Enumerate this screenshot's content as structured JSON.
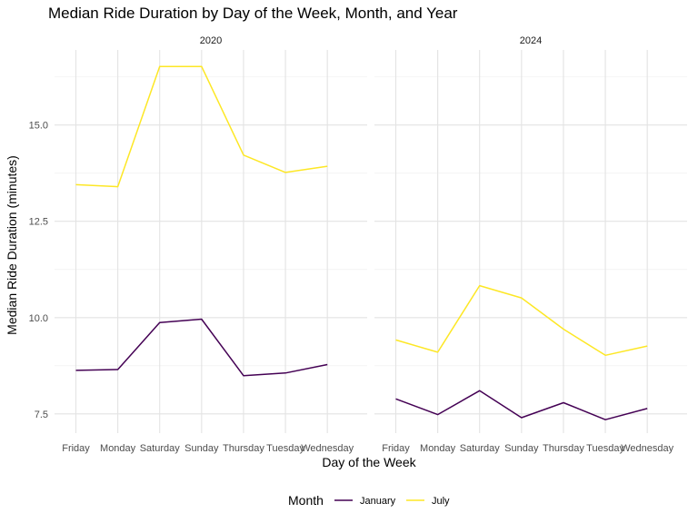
{
  "chart_data": {
    "type": "line",
    "title": "Median Ride Duration by Day of the Week, Month, and Year",
    "xlabel": "Day of the Week",
    "ylabel": "Median Ride Duration (minutes)",
    "categories": [
      "Friday",
      "Monday",
      "Saturday",
      "Sunday",
      "Thursday",
      "Tuesday",
      "Wednesday"
    ],
    "y_ticks": [
      "7.5",
      "10.0",
      "12.5",
      "15.0"
    ],
    "ylim": [
      7.0,
      16.95
    ],
    "grid": true,
    "legend": {
      "title": "Month",
      "position": "bottom",
      "entries": [
        "January",
        "July"
      ]
    },
    "panels": [
      {
        "label": "2020",
        "series": [
          {
            "name": "January",
            "color": "#440154",
            "values": [
              8.63,
              8.65,
              9.87,
              9.96,
              8.49,
              8.56,
              8.78
            ]
          },
          {
            "name": "July",
            "color": "#FDE725",
            "values": [
              13.45,
              13.4,
              16.52,
              16.52,
              14.22,
              13.77,
              13.93
            ]
          }
        ]
      },
      {
        "label": "2024",
        "series": [
          {
            "name": "January",
            "color": "#440154",
            "values": [
              7.89,
              7.48,
              8.1,
              7.4,
              7.79,
              7.35,
              7.64
            ]
          },
          {
            "name": "July",
            "color": "#FDE725",
            "values": [
              9.42,
              9.1,
              10.83,
              10.51,
              9.7,
              9.02,
              9.26
            ]
          }
        ]
      }
    ]
  }
}
